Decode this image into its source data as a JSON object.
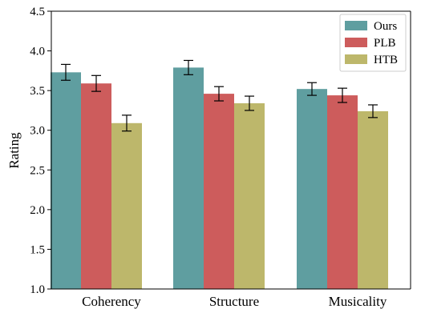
{
  "chart_data": {
    "type": "bar",
    "categories": [
      "Coherency",
      "Structure",
      "Musicality"
    ],
    "series": [
      {
        "name": "Ours",
        "color": "#5f9ea0",
        "values": [
          3.73,
          3.79,
          3.52
        ],
        "errors": [
          0.1,
          0.09,
          0.08
        ]
      },
      {
        "name": "PLB",
        "color": "#cd5c5c",
        "values": [
          3.59,
          3.46,
          3.44
        ],
        "errors": [
          0.1,
          0.09,
          0.09
        ]
      },
      {
        "name": "HTB",
        "color": "#bdb76b",
        "values": [
          3.09,
          3.34,
          3.24
        ],
        "errors": [
          0.1,
          0.09,
          0.08
        ]
      }
    ],
    "ylabel": "Rating",
    "xlabel": "",
    "ylim": [
      1.0,
      4.5
    ],
    "yticks": [
      "1.0",
      "1.5",
      "2.0",
      "2.5",
      "3.0",
      "3.5",
      "4.0",
      "4.5"
    ],
    "grid": false,
    "legend_position": "top-right"
  }
}
